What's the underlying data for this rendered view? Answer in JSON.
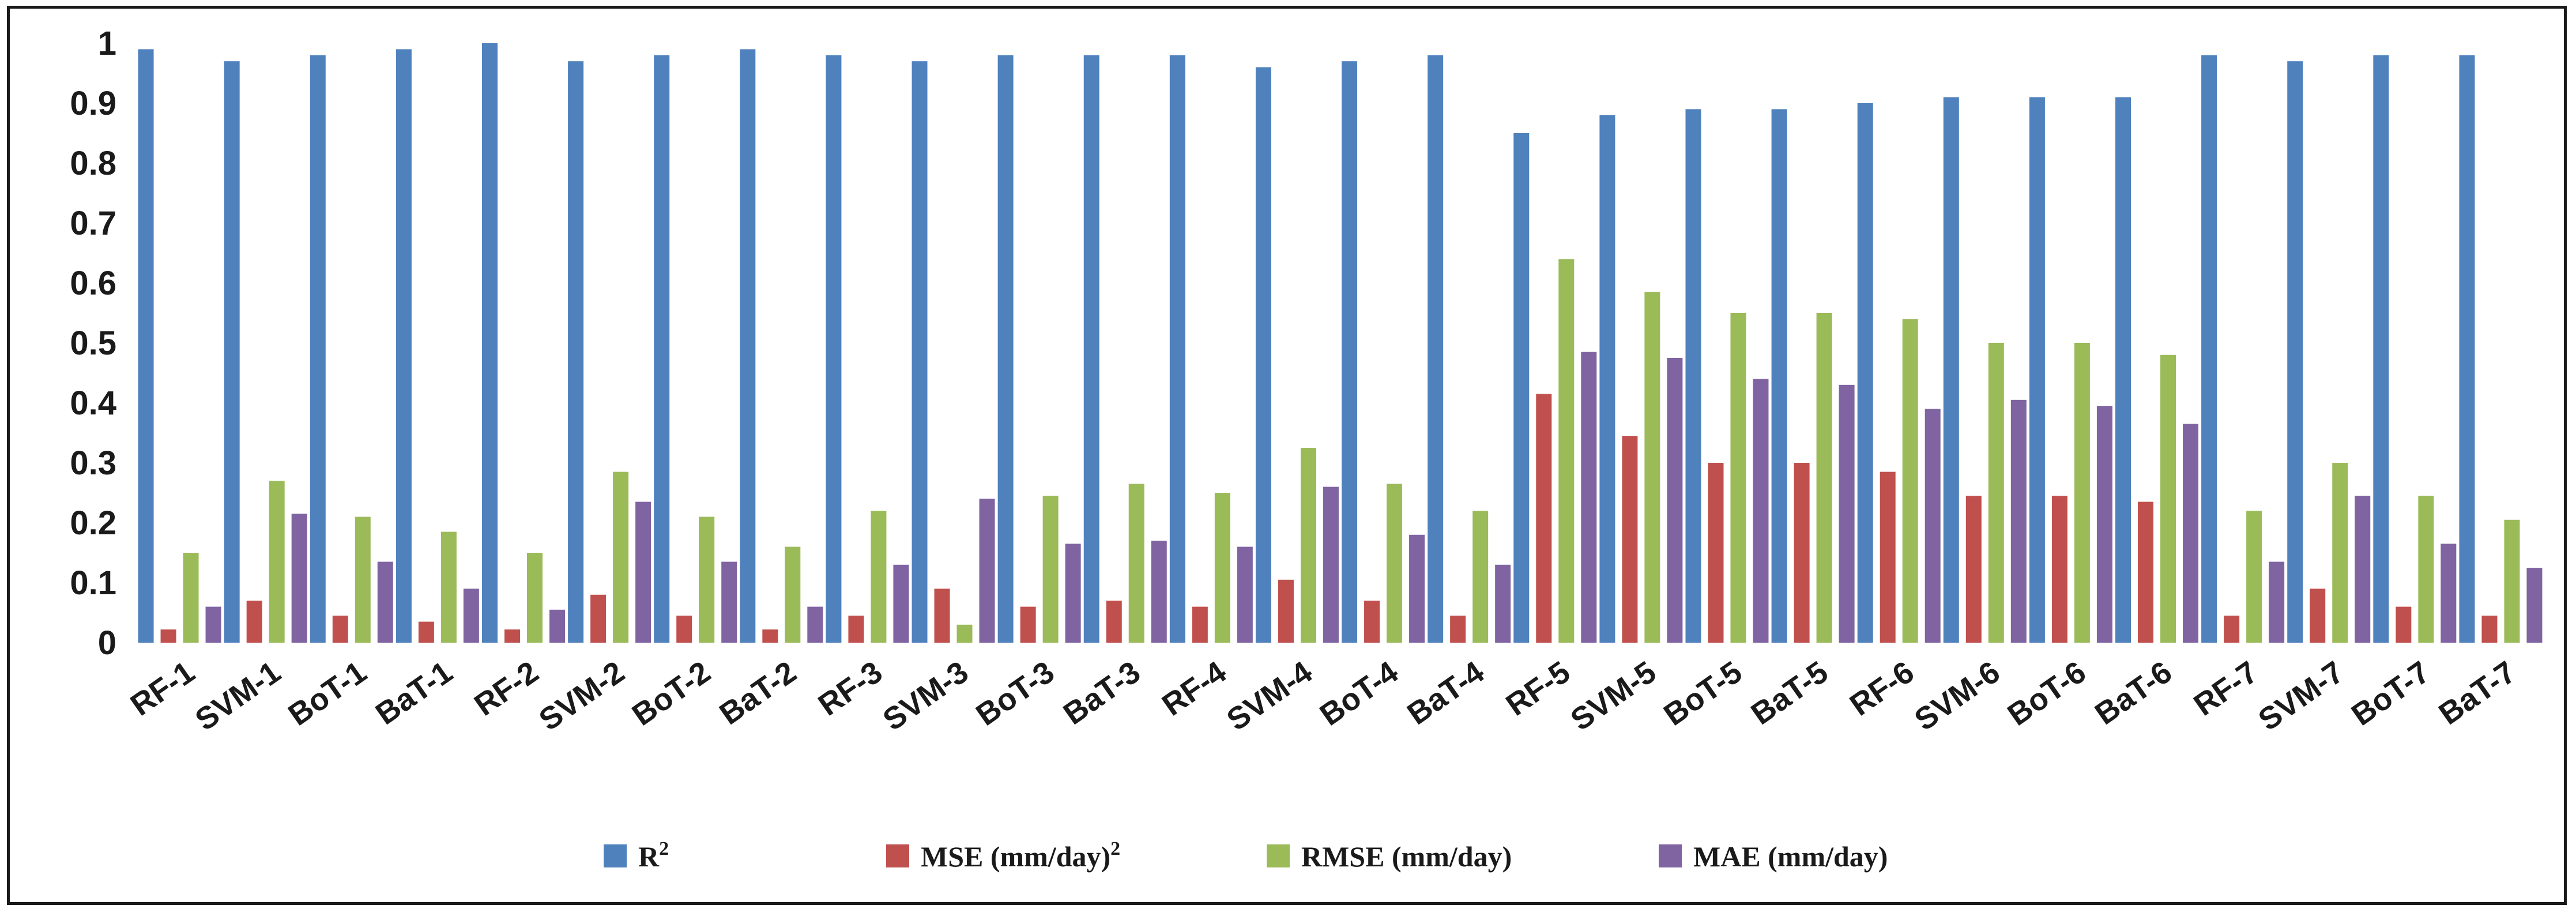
{
  "chart_data": {
    "type": "bar",
    "categories": [
      "RF-1",
      "SVM-1",
      "BoT-1",
      "BaT-1",
      "RF-2",
      "SVM-2",
      "BoT-2",
      "BaT-2",
      "RF-3",
      "SVM-3",
      "BoT-3",
      "BaT-3",
      "RF-4",
      "SVM-4",
      "BoT-4",
      "BaT-4",
      "RF-5",
      "SVM-5",
      "BoT-5",
      "BaT-5",
      "RF-6",
      "SVM-6",
      "BoT-6",
      "BaT-6",
      "RF-7",
      "SVM-7",
      "BoT-7",
      "BaT-7"
    ],
    "series": [
      {
        "name": "R²",
        "base": "R",
        "sup": "2",
        "color": "#4F81BD",
        "values": [
          0.99,
          0.97,
          0.98,
          0.99,
          1.0,
          0.97,
          0.98,
          0.99,
          0.98,
          0.97,
          0.98,
          0.98,
          0.98,
          0.96,
          0.97,
          0.98,
          0.85,
          0.88,
          0.89,
          0.89,
          0.9,
          0.91,
          0.91,
          0.91,
          0.98,
          0.97,
          0.98,
          0.98
        ]
      },
      {
        "name": "MSE (mm/day)²",
        "base": "MSE (mm/day)",
        "sup": "2",
        "color": "#C0504D",
        "values": [
          0.022,
          0.07,
          0.045,
          0.035,
          0.022,
          0.08,
          0.045,
          0.022,
          0.045,
          0.09,
          0.06,
          0.07,
          0.06,
          0.105,
          0.07,
          0.045,
          0.415,
          0.345,
          0.3,
          0.3,
          0.285,
          0.245,
          0.245,
          0.235,
          0.045,
          0.09,
          0.06,
          0.045
        ]
      },
      {
        "name": "RMSE (mm/day)",
        "base": "RMSE (mm/day)",
        "sup": "",
        "color": "#9BBB59",
        "values": [
          0.15,
          0.27,
          0.21,
          0.185,
          0.15,
          0.285,
          0.21,
          0.16,
          0.22,
          0.03,
          0.245,
          0.265,
          0.25,
          0.325,
          0.265,
          0.22,
          0.64,
          0.585,
          0.55,
          0.55,
          0.54,
          0.5,
          0.5,
          0.48,
          0.22,
          0.3,
          0.245,
          0.205
        ]
      },
      {
        "name": "MAE (mm/day)",
        "base": "MAE (mm/day)",
        "sup": "",
        "color": "#8064A2",
        "values": [
          0.06,
          0.215,
          0.135,
          0.09,
          0.055,
          0.235,
          0.135,
          0.06,
          0.13,
          0.24,
          0.165,
          0.17,
          0.16,
          0.26,
          0.18,
          0.13,
          0.485,
          0.475,
          0.44,
          0.43,
          0.39,
          0.405,
          0.395,
          0.365,
          0.135,
          0.245,
          0.165,
          0.125
        ]
      }
    ],
    "yticks": [
      "0",
      "0.1",
      "0.2",
      "0.3",
      "0.4",
      "0.5",
      "0.6",
      "0.7",
      "0.8",
      "0.9",
      "1"
    ],
    "ylim": [
      0,
      1
    ],
    "grid": false,
    "legend_position": "bottom"
  }
}
